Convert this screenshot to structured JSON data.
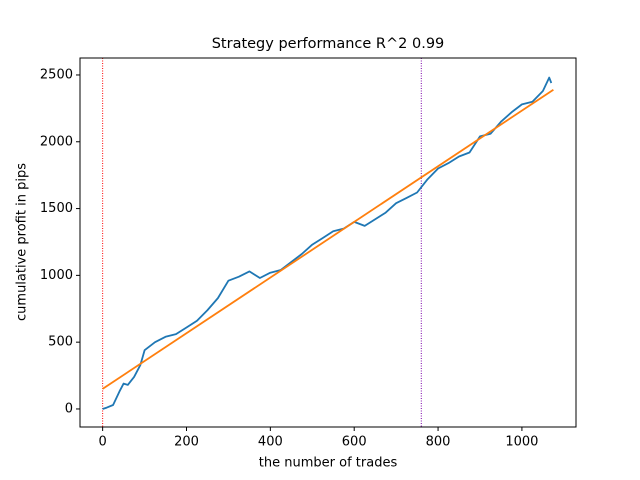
{
  "chart_data": {
    "type": "line",
    "title": "Strategy performance R^2 0.99",
    "xlabel": "the number of trades",
    "ylabel": "cumulative profit in pips",
    "xlim": [
      -54,
      1129
    ],
    "ylim": [
      -135,
      2627
    ],
    "xticks": [
      0,
      200,
      400,
      600,
      800,
      1000
    ],
    "yticks": [
      0,
      500,
      1000,
      1500,
      2000,
      2500
    ],
    "grid": false,
    "series": [
      {
        "color": "#1f77b4",
        "x": [
          0,
          10,
          25,
          40,
          50,
          60,
          75,
          90,
          100,
          125,
          150,
          175,
          200,
          225,
          250,
          275,
          300,
          325,
          350,
          375,
          400,
          425,
          450,
          475,
          500,
          525,
          550,
          575,
          600,
          625,
          650,
          675,
          700,
          725,
          750,
          775,
          800,
          825,
          850,
          875,
          900,
          925,
          950,
          975,
          1000,
          1025,
          1050,
          1065,
          1070
        ],
        "values": [
          0,
          10,
          30,
          130,
          190,
          180,
          240,
          330,
          440,
          500,
          540,
          560,
          610,
          660,
          740,
          830,
          960,
          990,
          1030,
          980,
          1020,
          1040,
          1100,
          1160,
          1230,
          1280,
          1330,
          1350,
          1400,
          1370,
          1420,
          1470,
          1540,
          1580,
          1620,
          1720,
          1800,
          1840,
          1890,
          1920,
          2040,
          2060,
          2150,
          2220,
          2280,
          2300,
          2380,
          2480,
          2440
        ]
      },
      {
        "color": "#ff7f0e",
        "x": [
          0,
          1075
        ],
        "values": [
          150,
          2390
        ]
      }
    ],
    "vlines": [
      {
        "x": 0,
        "color": "#ff0000"
      },
      {
        "x": 760,
        "color": "#7b00a8"
      }
    ]
  }
}
